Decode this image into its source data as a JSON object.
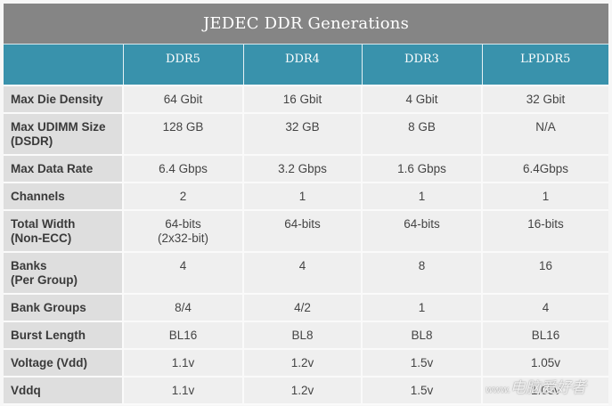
{
  "title": "JEDEC DDR Generations",
  "columns": [
    "",
    "DDR5",
    "DDR4",
    "DDR3",
    "LPDDR5"
  ],
  "rows": [
    {
      "label": [
        "Max Die Density"
      ],
      "values": [
        [
          "64 Gbit"
        ],
        [
          "16 Gbit"
        ],
        [
          "4 Gbit"
        ],
        [
          "32 Gbit"
        ]
      ],
      "tall": false
    },
    {
      "label": [
        "Max UDIMM Size",
        "(DSDR)"
      ],
      "values": [
        [
          "128 GB"
        ],
        [
          "32 GB"
        ],
        [
          "8 GB"
        ],
        [
          "N/A"
        ]
      ],
      "tall": true
    },
    {
      "label": [
        "Max Data Rate"
      ],
      "values": [
        [
          "6.4 Gbps"
        ],
        [
          "3.2 Gbps"
        ],
        [
          "1.6 Gbps"
        ],
        [
          "6.4Gbps"
        ]
      ],
      "tall": false
    },
    {
      "label": [
        "Channels"
      ],
      "values": [
        [
          "2"
        ],
        [
          "1"
        ],
        [
          "1"
        ],
        [
          "1"
        ]
      ],
      "tall": false
    },
    {
      "label": [
        "Total Width",
        "(Non-ECC)"
      ],
      "values": [
        [
          "64-bits",
          "(2x32-bit)"
        ],
        [
          "64-bits"
        ],
        [
          "64-bits"
        ],
        [
          "16-bits"
        ]
      ],
      "tall": true
    },
    {
      "label": [
        "Banks",
        "(Per Group)"
      ],
      "values": [
        [
          "4"
        ],
        [
          "4"
        ],
        [
          "8"
        ],
        [
          "16"
        ]
      ],
      "tall": true
    },
    {
      "label": [
        "Bank Groups"
      ],
      "values": [
        [
          "8/4"
        ],
        [
          "4/2"
        ],
        [
          "1"
        ],
        [
          "4"
        ]
      ],
      "tall": false
    },
    {
      "label": [
        "Burst Length"
      ],
      "values": [
        [
          "BL16"
        ],
        [
          "BL8"
        ],
        [
          "BL8"
        ],
        [
          "BL16"
        ]
      ],
      "tall": false
    },
    {
      "label": [
        "Voltage (Vdd)"
      ],
      "values": [
        [
          "1.1v"
        ],
        [
          "1.2v"
        ],
        [
          "1.5v"
        ],
        [
          "1.05v"
        ]
      ],
      "tall": false
    },
    {
      "label": [
        "Vddq"
      ],
      "values": [
        [
          "1.1v"
        ],
        [
          "1.2v"
        ],
        [
          "1.5v"
        ],
        [
          "1.05v"
        ]
      ],
      "tall": false
    }
  ],
  "watermark": {
    "prefix": "www.",
    "text": "电脑爱好者"
  },
  "colors": {
    "title_band": "#858585",
    "header": "#3992ac",
    "label_cell": "#dedede",
    "value_cell": "#efefef"
  }
}
